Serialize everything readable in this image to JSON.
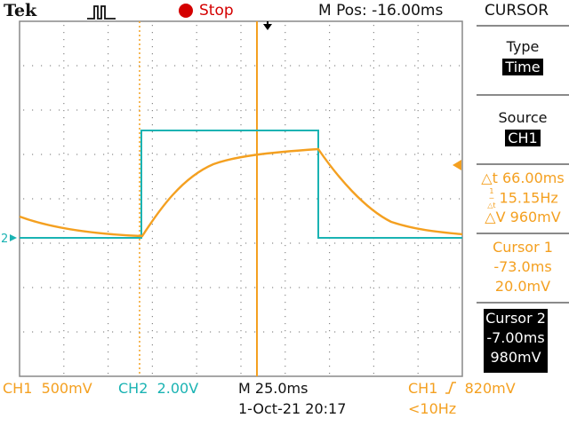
{
  "header": {
    "brand": "Tek",
    "run_state": "Stop",
    "horizontal_position": "M Pos: -16.00ms",
    "menu_title": "CURSOR"
  },
  "side_menu": {
    "type_label": "Type",
    "type_value": "Time",
    "source_label": "Source",
    "source_value": "CH1",
    "delta_t": "△t 66.00ms",
    "inv_delta_t_value": "15.15Hz",
    "delta_v": "△V 960mV",
    "cursor1": {
      "title": "Cursor 1",
      "time": "-73.0ms",
      "value": "20.0mV"
    },
    "cursor2": {
      "title": "Cursor 2",
      "time": "-7.00ms",
      "value": "980mV"
    }
  },
  "footer": {
    "ch1_label": "CH1",
    "ch1_scale": "500mV",
    "ch2_label": "CH2",
    "ch2_scale": "2.00V",
    "timebase": "M 25.0ms",
    "datetime": "1-Oct-21 20:17",
    "trigger_source": "CH1",
    "trigger_level": "820mV",
    "trigger_freq": "<10Hz"
  },
  "markers": {
    "ch2_ground": "2"
  },
  "colors": {
    "ch1": "#f4a020",
    "ch2": "#1ab3b3",
    "grid": "#888888",
    "stop": "#d40000"
  }
}
